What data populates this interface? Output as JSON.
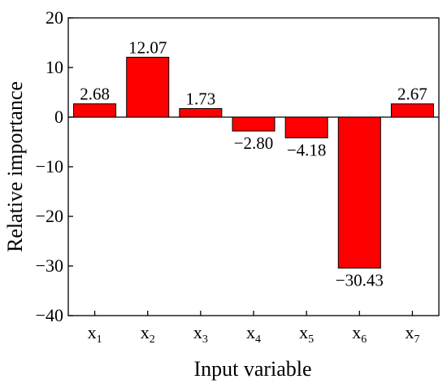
{
  "chart_data": {
    "type": "bar",
    "categories": [
      "x1",
      "x2",
      "x3",
      "x4",
      "x5",
      "x6",
      "x7"
    ],
    "category_labels": [
      {
        "base": "x",
        "sub": "1"
      },
      {
        "base": "x",
        "sub": "2"
      },
      {
        "base": "x",
        "sub": "3"
      },
      {
        "base": "x",
        "sub": "4"
      },
      {
        "base": "x",
        "sub": "5"
      },
      {
        "base": "x",
        "sub": "6"
      },
      {
        "base": "x",
        "sub": "7"
      }
    ],
    "values": [
      2.68,
      12.07,
      1.73,
      -2.8,
      -4.18,
      -30.43,
      2.67
    ],
    "value_labels": [
      "2.68",
      "12.07",
      "1.73",
      "−2.80",
      "−4.18",
      "−30.43",
      "2.67"
    ],
    "xlabel": "Input variable",
    "ylabel": "Relative importance",
    "ylim": [
      -40,
      20
    ],
    "yticks": [
      20,
      10,
      0,
      -10,
      -20,
      -30,
      -40
    ],
    "ytick_labels": [
      "20",
      "10",
      "0",
      "−10",
      "−20",
      "−30",
      "−40"
    ],
    "zero_line": true,
    "grid": false,
    "bar_color": "#ff0000",
    "bar_edge_color": "#000000"
  }
}
